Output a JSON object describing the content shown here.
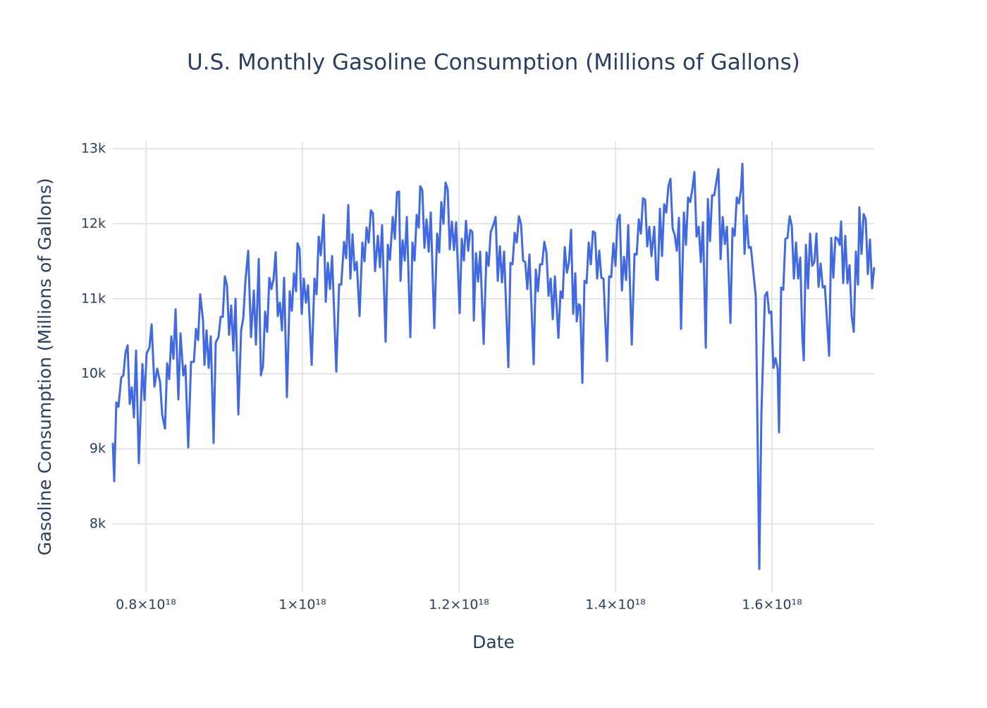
{
  "chart_data": {
    "type": "line",
    "title": "U.S. Monthly Gasoline Consumption (Millions of Gallons)",
    "x_label": "Date",
    "y_label": "Gasoline Consumption (Millions of Gallons)",
    "color": "#4169e1",
    "grid": true,
    "xlim": [
      7.577e+17,
      1.7306e+18
    ],
    "ylim": [
      7088,
      13103
    ],
    "xticks": [
      {
        "value": 8e+17,
        "label": "0.8×10¹⁸"
      },
      {
        "value": 1e+18,
        "label": "1×10¹⁸"
      },
      {
        "value": 1.2e+18,
        "label": "1.2×10¹⁸"
      },
      {
        "value": 1.4e+18,
        "label": "1.4×10¹⁸"
      },
      {
        "value": 1.6e+18,
        "label": "1.6×10¹⁸"
      }
    ],
    "yticks": [
      {
        "value": 8000,
        "label": "8k"
      },
      {
        "value": 9000,
        "label": "9k"
      },
      {
        "value": 10000,
        "label": "10k"
      },
      {
        "value": 11000,
        "label": "11k"
      },
      {
        "value": 12000,
        "label": "12k"
      },
      {
        "value": 13000,
        "label": "13k"
      }
    ],
    "x": [
      7.577e+17,
      7.595e+17,
      7.622e+17,
      7.649e+17,
      7.685e+17,
      7.712e+17,
      7.739e+17,
      7.766e+17,
      7.793e+17,
      7.82e+17,
      7.847e+17,
      7.874e+17,
      7.91e+17,
      7.955e+17,
      7.982e+17,
      8.009e+17,
      8.045e+17,
      8.073e+17,
      8.109e+17,
      8.145e+17,
      8.181e+17,
      8.208e+17,
      8.244e+17,
      8.271e+17,
      8.298e+17,
      8.325e+17,
      8.352e+17,
      8.379e+17,
      8.415e+17,
      8.442e+17,
      8.478e+17,
      8.505e+17,
      8.541e+17,
      8.577e+17,
      8.613e+17,
      8.64e+17,
      8.667e+17,
      8.694e+17,
      8.73e+17,
      8.748e+17,
      8.775e+17,
      8.802e+17,
      8.829e+17,
      8.865e+17,
      8.892e+17,
      8.928e+17,
      8.955e+17,
      8.982e+17,
      9.009e+17,
      9.036e+17,
      9.063e+17,
      9.09e+17,
      9.118e+17,
      9.145e+17,
      9.181e+17,
      9.217e+17,
      9.244e+17,
      9.271e+17,
      9.307e+17,
      9.343e+17,
      9.379e+17,
      9.406e+17,
      9.442e+17,
      9.469e+17,
      9.496e+17,
      9.523e+17,
      9.55e+17,
      9.577e+17,
      9.604e+17,
      9.631e+17,
      9.658e+17,
      9.685e+17,
      9.712e+17,
      9.739e+17,
      9.766e+17,
      9.802e+17,
      9.838e+17,
      9.865e+17,
      9.892e+17,
      9.919e+17,
      9.937e+17,
      9.964e+17,
      9.991e+17,
      1.0018e+18,
      1.0045e+18,
      1.0072e+18,
      1.0118e+18,
      1.0154e+18,
      1.0181e+18,
      1.0208e+18,
      1.0235e+18,
      1.0271e+18,
      1.0298e+18,
      1.0325e+18,
      1.0352e+18,
      1.0379e+18,
      1.0433e+18,
      1.0469e+18,
      1.0496e+18,
      1.0532e+18,
      1.0559e+18,
      1.0586e+18,
      1.0613e+18,
      1.064e+18,
      1.0667e+18,
      1.0694e+18,
      1.073e+18,
      1.0766e+18,
      1.0793e+18,
      1.082e+18,
      1.0847e+18,
      1.0874e+18,
      1.0901e+18,
      1.0928e+18,
      1.0964e+18,
      1.0991e+18,
      1.1018e+18,
      1.1063e+18,
      1.1091e+18,
      1.1118e+18,
      1.1154e+18,
      1.1181e+18,
      1.1208e+18,
      1.1235e+18,
      1.1253e+18,
      1.128e+18,
      1.1307e+18,
      1.1334e+18,
      1.1379e+18,
      1.1406e+18,
      1.1433e+18,
      1.146e+18,
      1.1487e+18,
      1.1505e+18,
      1.1532e+18,
      1.1559e+18,
      1.1586e+18,
      1.1613e+18,
      1.164e+18,
      1.1685e+18,
      1.1721e+18,
      1.1748e+18,
      1.1775e+18,
      1.1802e+18,
      1.1829e+18,
      1.1856e+18,
      1.1883e+18,
      1.191e+18,
      1.1937e+18,
      1.1964e+18,
      1.2009e+18,
      1.2036e+18,
      1.2063e+18,
      1.209e+18,
      1.2118e+18,
      1.2145e+18,
      1.2172e+18,
      1.219e+18,
      1.2217e+18,
      1.2244e+18,
      1.2271e+18,
      1.2316e+18,
      1.2352e+18,
      1.2379e+18,
      1.2406e+18,
      1.2442e+18,
      1.2469e+18,
      1.2496e+18,
      1.2523e+18,
      1.255e+18,
      1.2577e+18,
      1.2631e+18,
      1.2658e+18,
      1.2685e+18,
      1.2712e+18,
      1.2739e+18,
      1.2766e+18,
      1.2793e+18,
      1.282e+18,
      1.2847e+18,
      1.2874e+18,
      1.2901e+18,
      1.2955e+18,
      1.2982e+18,
      1.3009e+18,
      1.3036e+18,
      1.3063e+18,
      1.3091e+18,
      1.3118e+18,
      1.3145e+18,
      1.3172e+18,
      1.3199e+18,
      1.3226e+18,
      1.3271e+18,
      1.3298e+18,
      1.3325e+18,
      1.3352e+18,
      1.3379e+18,
      1.3406e+18,
      1.3433e+18,
      1.346e+18,
      1.3487e+18,
      1.3505e+18,
      1.3532e+18,
      1.355e+18,
      1.3577e+18,
      1.3604e+18,
      1.3631e+18,
      1.3658e+18,
      1.3685e+18,
      1.3712e+18,
      1.3739e+18,
      1.3766e+18,
      1.3793e+18,
      1.382e+18,
      1.3847e+18,
      1.3892e+18,
      1.3919e+18,
      1.3946e+18,
      1.3973e+18,
      1.4e+18,
      1.4027e+18,
      1.4055e+18,
      1.4082e+18,
      1.4109e+18,
      1.4136e+18,
      1.4163e+18,
      1.4208e+18,
      1.4244e+18,
      1.4271e+18,
      1.4298e+18,
      1.4325e+18,
      1.4352e+18,
      1.4379e+18,
      1.4406e+18,
      1.4433e+18,
      1.446e+18,
      1.4496e+18,
      1.4523e+18,
      1.4541e+18,
      1.4568e+18,
      1.4595e+18,
      1.4622e+18,
      1.4649e+18,
      1.4676e+18,
      1.4703e+18,
      1.473e+18,
      1.4757e+18,
      1.4784e+18,
      1.4811e+18,
      1.4838e+18,
      1.4874e+18,
      1.4901e+18,
      1.4928e+18,
      1.4955e+18,
      1.4982e+18,
      1.5009e+18,
      1.5036e+18,
      1.5064e+18,
      1.5091e+18,
      1.5118e+18,
      1.5154e+18,
      1.5181e+18,
      1.5208e+18,
      1.5235e+18,
      1.5262e+18,
      1.5289e+18,
      1.5316e+18,
      1.5343e+18,
      1.537e+18,
      1.5397e+18,
      1.5424e+18,
      1.5469e+18,
      1.5496e+18,
      1.5523e+18,
      1.555e+18,
      1.5577e+18,
      1.5604e+18,
      1.5622e+18,
      1.5649e+18,
      1.5676e+18,
      1.5703e+18,
      1.573e+18,
      1.5793e+18,
      1.5838e+18,
      1.5865e+18,
      1.591e+18,
      1.5937e+18,
      1.5964e+18,
      1.5991e+18,
      1.6018e+18,
      1.6045e+18,
      1.6072e+18,
      1.609e+18,
      1.6117e+18,
      1.6144e+18,
      1.6171e+18,
      1.6198e+18,
      1.6226e+18,
      1.6253e+18,
      1.628e+18,
      1.6307e+18,
      1.6334e+18,
      1.6361e+18,
      1.6388e+18,
      1.6406e+18,
      1.6433e+18,
      1.646e+18,
      1.6487e+18,
      1.6514e+18,
      1.6541e+18,
      1.6568e+18,
      1.6595e+18,
      1.6622e+18,
      1.6649e+18,
      1.6676e+18,
      1.673e+18,
      1.6757e+18,
      1.6784e+18,
      1.6811e+18,
      1.6838e+18,
      1.6865e+18,
      1.6883e+18,
      1.691e+18,
      1.6937e+18,
      1.6964e+18,
      1.6991e+18,
      1.7018e+18,
      1.7045e+18,
      1.7072e+18,
      1.7099e+18,
      1.7117e+18,
      1.7144e+18,
      1.7171e+18,
      1.7198e+18,
      1.7225e+18,
      1.7252e+18,
      1.7279e+18,
      1.7306e+18
    ],
    "values": [
      9080,
      8570,
      9620,
      9560,
      9950,
      9980,
      10280,
      10380,
      9600,
      9820,
      9420,
      10310,
      8810,
      10130,
      9650,
      10270,
      10350,
      10660,
      9830,
      10070,
      9890,
      9460,
      9270,
      10140,
      9930,
      10500,
      10200,
      10860,
      9660,
      10540,
      9980,
      10110,
      9020,
      10160,
      10160,
      10600,
      10450,
      11060,
      10710,
      10120,
      10580,
      10080,
      10500,
      9080,
      10420,
      10490,
      10760,
      10760,
      11300,
      11180,
      10520,
      10910,
      10310,
      11000,
      9460,
      10580,
      10740,
      11230,
      11640,
      10490,
      11110,
      10390,
      11530,
      9980,
      10100,
      10830,
      10560,
      11280,
      11130,
      11260,
      11620,
      10770,
      10950,
      10580,
      11280,
      9690,
      11100,
      10840,
      11340,
      11100,
      11740,
      11660,
      10800,
      11270,
      10950,
      11180,
      10120,
      11270,
      11060,
      11830,
      11580,
      12120,
      10960,
      11480,
      11130,
      11570,
      10030,
      11190,
      11190,
      11760,
      11540,
      12250,
      11270,
      11860,
      11380,
      11490,
      10770,
      11750,
      11500,
      11950,
      11750,
      12180,
      12140,
      11370,
      11840,
      11420,
      11980,
      10430,
      11720,
      11520,
      12090,
      11800,
      12420,
      12430,
      11240,
      11780,
      11510,
      12090,
      10490,
      11750,
      11510,
      12120,
      11950,
      12500,
      12450,
      11680,
      12060,
      11630,
      12150,
      10610,
      11870,
      11620,
      12290,
      12000,
      12550,
      12460,
      11660,
      12030,
      11650,
      12020,
      10810,
      11800,
      11510,
      12040,
      11640,
      11920,
      11890,
      10710,
      11610,
      11230,
      11630,
      10400,
      11620,
      11440,
      11890,
      11990,
      12090,
      11240,
      11700,
      11220,
      11630,
      10090,
      11480,
      11460,
      11880,
      11750,
      12100,
      12000,
      11510,
      11490,
      11130,
      11590,
      10130,
      11390,
      11100,
      11460,
      11460,
      11760,
      11620,
      11040,
      11270,
      10730,
      11300,
      10480,
      11100,
      11010,
      11690,
      11350,
      11490,
      11920,
      10800,
      11340,
      10700,
      10930,
      10900,
      9880,
      11240,
      11210,
      11750,
      11460,
      11900,
      11880,
      11270,
      11640,
      11280,
      11270,
      10170,
      11300,
      11290,
      11740,
      11440,
      12050,
      12120,
      11110,
      11560,
      11250,
      11980,
      10390,
      11600,
      11590,
      12060,
      11870,
      12340,
      12320,
      11700,
      11960,
      11570,
      11960,
      11260,
      11250,
      12200,
      11570,
      12260,
      12150,
      12500,
      12600,
      11940,
      11850,
      11640,
      12080,
      10600,
      12150,
      11720,
      12350,
      12290,
      12460,
      12690,
      11830,
      11960,
      11490,
      12020,
      10350,
      12330,
      11770,
      12380,
      12380,
      12560,
      12730,
      11530,
      12090,
      11730,
      11960,
      10680,
      11940,
      11840,
      12350,
      12270,
      12460,
      12800,
      11600,
      12110,
      11680,
      11690,
      11030,
      7400,
      9480,
      11040,
      11090,
      10810,
      10830,
      10080,
      10210,
      10070,
      9220,
      11150,
      11120,
      11800,
      11810,
      12100,
      11970,
      11270,
      11750,
      11270,
      11550,
      10480,
      10180,
      11720,
      11140,
      11870,
      11440,
      11490,
      11870,
      11160,
      11470,
      11150,
      11170,
      10240,
      11810,
      11280,
      11820,
      11800,
      11720,
      12030,
      11210,
      11840,
      11210,
      11450,
      10770,
      10560,
      11630,
      11190,
      12220,
      11600,
      12130,
      12060,
      11330,
      11790,
      11140,
      11420
    ]
  }
}
